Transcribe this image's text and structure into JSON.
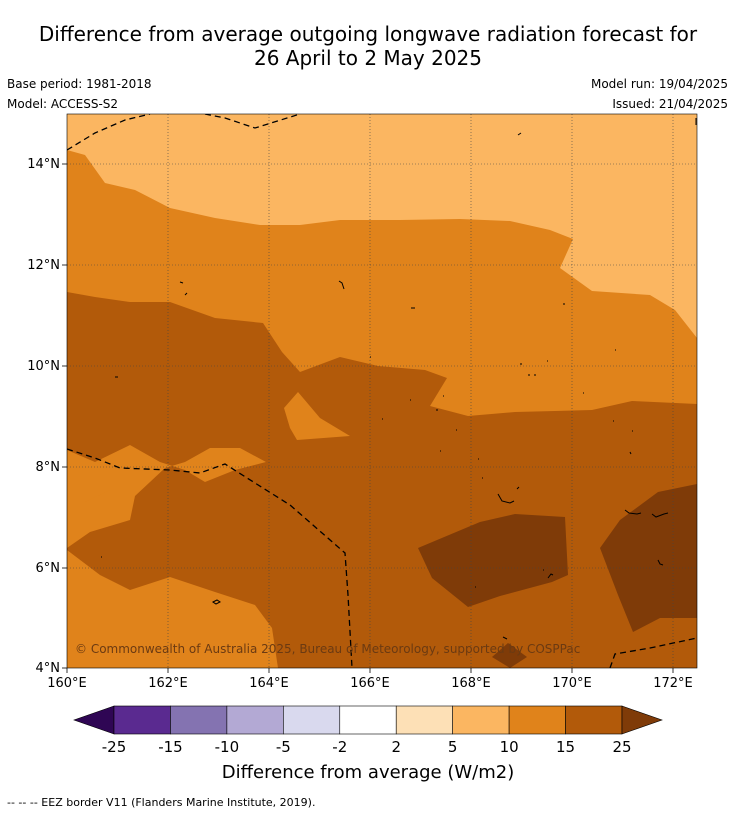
{
  "title_line1": "Difference from average outgoing longwave radiation forecast for",
  "title_line2": "26 April to 2 May 2025",
  "base_period": "Base period: 1981-2018",
  "model": "Model: ACCESS-S2",
  "model_run": "Model run: 19/04/2025",
  "issued": "Issued: 21/04/2025",
  "copyright": "© Commonwealth of Australia 2025, Bureau of Meteorology, supported by COSPPac",
  "footer": "--  --  -- EEZ border V11 (Flanders Marine Institute, 2019).",
  "map": {
    "lon_ticks": [
      "160°E",
      "162°E",
      "164°E",
      "166°E",
      "168°E",
      "170°E",
      "172°E"
    ],
    "lat_ticks": [
      "14°N",
      "12°N",
      "10°N",
      "8°N",
      "6°N",
      "4°N"
    ]
  },
  "colorbar": {
    "title": "Difference from average (W/m2)",
    "tick_labels": [
      "-25",
      "-15",
      "-10",
      "-5",
      "-2",
      "2",
      "5",
      "10",
      "15",
      "25"
    ],
    "colors": [
      "#5a2a90",
      "#8473b1",
      "#b3a9d4",
      "#d9d9ee",
      "#ffffff",
      "#fde0b6",
      "#fbb661",
      "#e0831b",
      "#b25a0a"
    ],
    "under_color": "#2f0654",
    "over_color": "#7f3b08"
  },
  "colors": {
    "light_orange": "#fbb661",
    "mid_orange": "#e0831b",
    "dark_orange": "#b25a0a",
    "darkest_brown": "#7f3b08"
  }
}
